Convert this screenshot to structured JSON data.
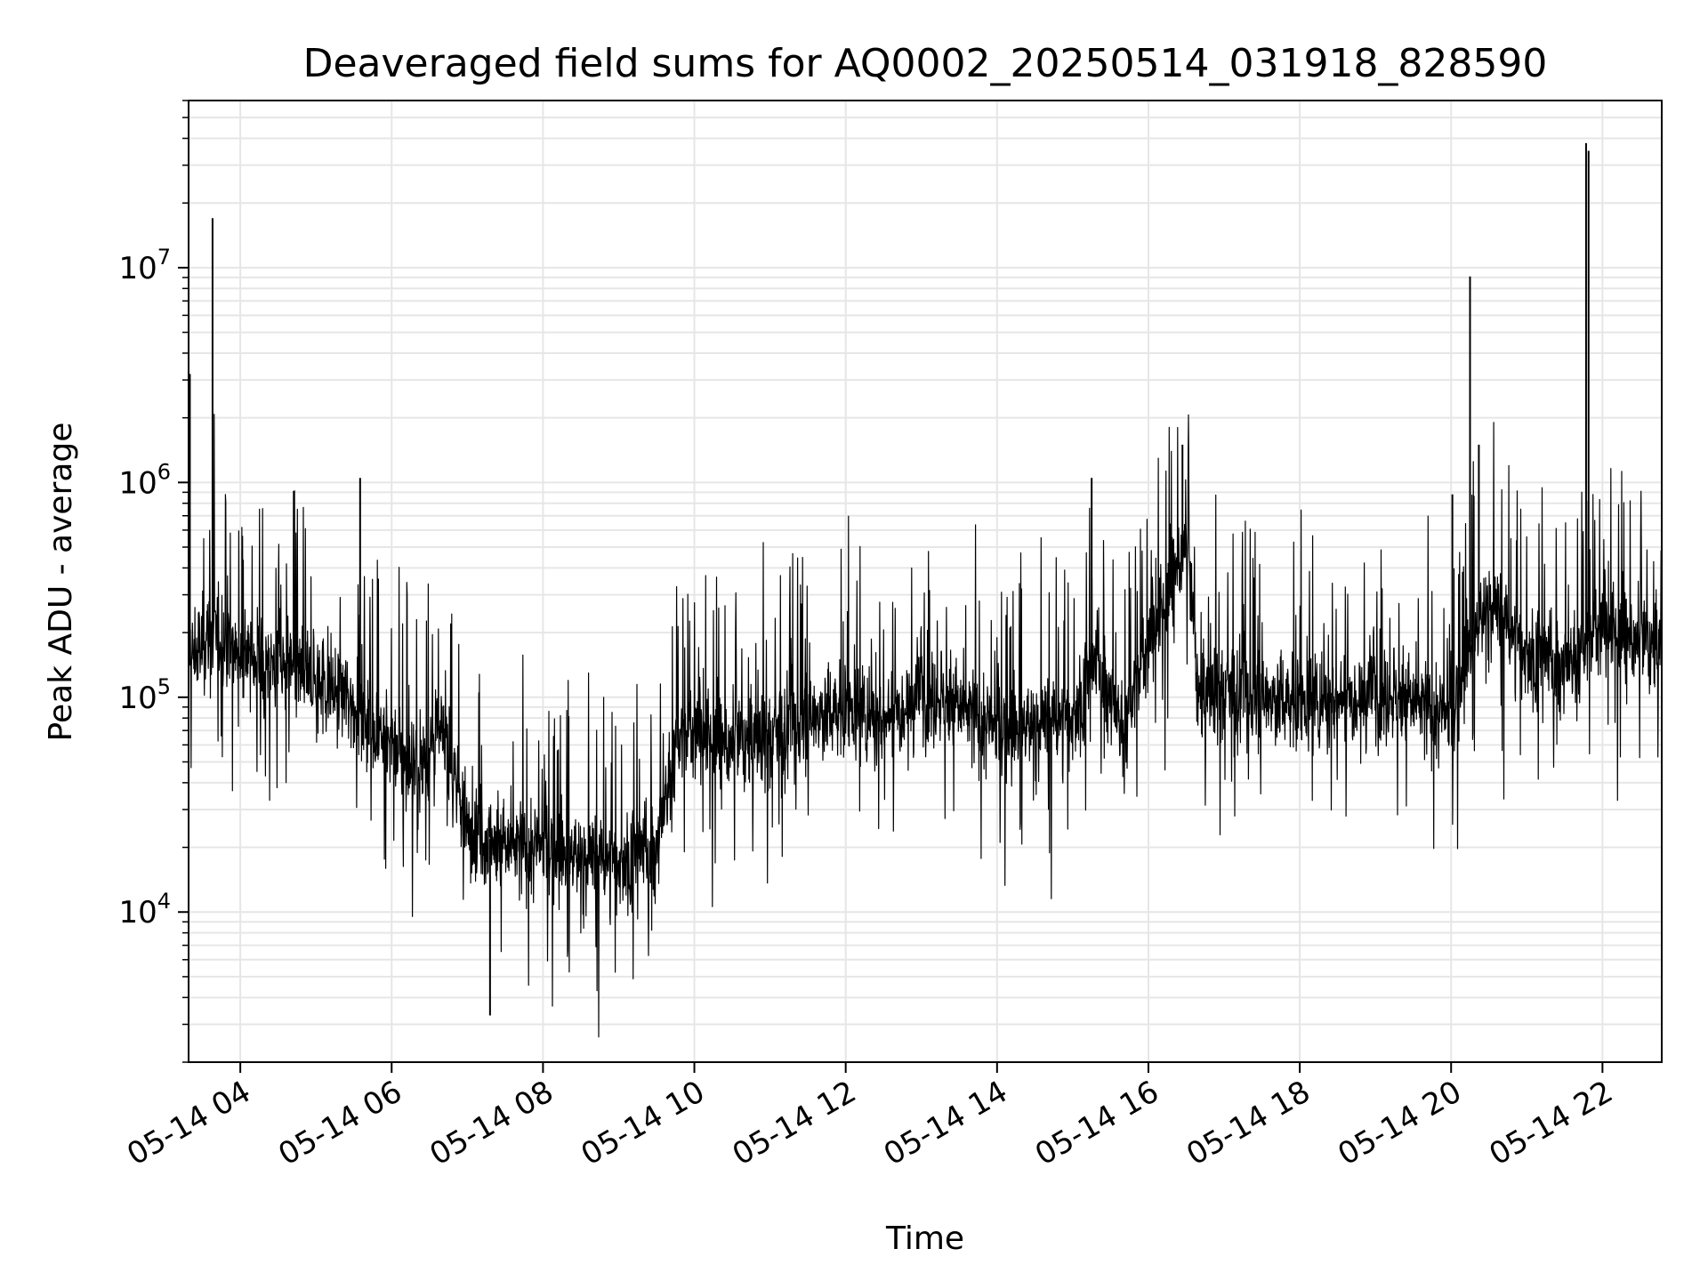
{
  "chart_data": {
    "type": "line",
    "title": "Deaveraged field sums for AQ0002_20250514_031918_828590",
    "xlabel": "Time",
    "ylabel": "Peak ADU - average",
    "y_scale": "log",
    "ylim": [
      2000,
      60000000
    ],
    "xlim": [
      "05-14 03:19",
      "05-14 22:47"
    ],
    "grid": true,
    "series_color": "#000000",
    "x_ticks": [
      "05-14 04",
      "05-14 06",
      "05-14 08",
      "05-14 10",
      "05-14 12",
      "05-14 14",
      "05-14 16",
      "05-14 18",
      "05-14 20",
      "05-14 22"
    ],
    "y_ticks": [
      {
        "value": 10000,
        "base": "10",
        "exp": "4"
      },
      {
        "value": 100000,
        "base": "10",
        "exp": "5"
      },
      {
        "value": 1000000,
        "base": "10",
        "exp": "6"
      },
      {
        "value": 10000000,
        "base": "10",
        "exp": "7"
      }
    ],
    "series": [
      {
        "x": [
          "05-14 03:19",
          "05-14 03:30",
          "05-14 03:40",
          "05-14 04:00",
          "05-14 04:30",
          "05-14 05:00",
          "05-14 05:30",
          "05-14 06:00",
          "05-14 06:20",
          "05-14 06:40",
          "05-14 07:00",
          "05-14 07:30",
          "05-14 08:00",
          "05-14 08:30",
          "05-14 09:00",
          "05-14 09:30",
          "05-14 09:45",
          "05-14 10:00",
          "05-14 10:30",
          "05-14 11:00",
          "05-14 11:30",
          "05-14 12:00",
          "05-14 12:30",
          "05-14 13:00",
          "05-14 13:30",
          "05-14 14:00",
          "05-14 14:30",
          "05-14 15:00",
          "05-14 15:20",
          "05-14 15:40",
          "05-14 16:00",
          "05-14 16:15",
          "05-14 16:30",
          "05-14 16:40",
          "05-14 17:00",
          "05-14 17:30",
          "05-14 18:00",
          "05-14 18:30",
          "05-14 19:00",
          "05-14 19:30",
          "05-14 20:00",
          "05-14 20:15",
          "05-14 20:30",
          "05-14 21:00",
          "05-14 21:30",
          "05-14 21:45",
          "05-14 22:00",
          "05-14 22:30",
          "05-14 22:47"
        ],
        "y": [
          150000,
          170000,
          200000,
          160000,
          140000,
          120000,
          95000,
          60000,
          45000,
          70000,
          25000,
          20000,
          20000,
          18000,
          17000,
          20000,
          60000,
          70000,
          60000,
          65000,
          80000,
          90000,
          80000,
          110000,
          90000,
          70000,
          75000,
          80000,
          150000,
          70000,
          180000,
          300000,
          550000,
          100000,
          110000,
          100000,
          95000,
          100000,
          110000,
          95000,
          80000,
          180000,
          280000,
          160000,
          140000,
          170000,
          220000,
          180000,
          170000
        ]
      }
    ],
    "spikes": [
      {
        "x": "05-14 03:20",
        "y": 3200000
      },
      {
        "x": "05-14 03:38",
        "y": 17000000
      },
      {
        "x": "05-14 05:35",
        "y": 1050000
      },
      {
        "x": "05-14 07:18",
        "y": 3300
      },
      {
        "x": "05-14 15:15",
        "y": 1050000
      },
      {
        "x": "05-14 16:27",
        "y": 1500000
      },
      {
        "x": "05-14 20:01",
        "y": 880000
      },
      {
        "x": "05-14 20:15",
        "y": 9100000
      },
      {
        "x": "05-14 20:22",
        "y": 1500000
      },
      {
        "x": "05-14 21:47",
        "y": 38000000
      },
      {
        "x": "05-14 21:49",
        "y": 35000000
      }
    ]
  }
}
